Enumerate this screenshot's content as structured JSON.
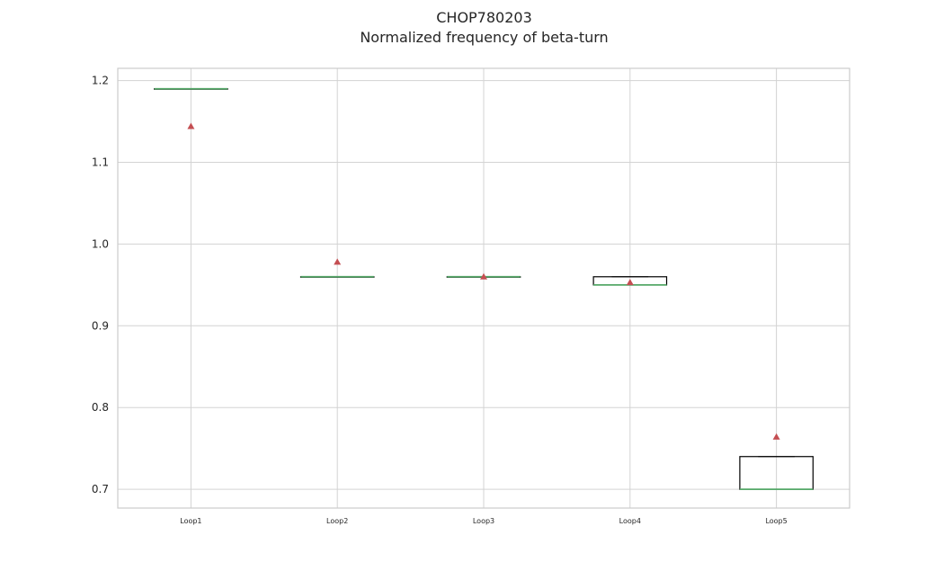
{
  "chart_data": {
    "type": "box",
    "title": "CHOP780203",
    "subtitle": "Normalized frequency of beta-turn",
    "xlabel": "",
    "ylabel": "",
    "ylim": [
      0.677,
      1.215
    ],
    "yticks": [
      "0.7",
      "0.8",
      "0.9",
      "1.0",
      "1.1",
      "1.2"
    ],
    "grid": true,
    "categories": [
      "Loop1",
      "Loop2",
      "Loop3",
      "Loop4",
      "Loop5"
    ],
    "boxes": [
      {
        "q1": 1.19,
        "median": 1.19,
        "q3": 1.19,
        "whisker_low": 1.19,
        "whisker_high": 1.19,
        "mean": 1.144
      },
      {
        "q1": 0.96,
        "median": 0.96,
        "q3": 0.96,
        "whisker_low": 0.96,
        "whisker_high": 0.96,
        "mean": 0.978
      },
      {
        "q1": 0.96,
        "median": 0.96,
        "q3": 0.96,
        "whisker_low": 0.96,
        "whisker_high": 0.96,
        "mean": 0.96
      },
      {
        "q1": 0.95,
        "median": 0.95,
        "q3": 0.96,
        "whisker_low": 0.95,
        "whisker_high": 0.96,
        "mean": 0.953
      },
      {
        "q1": 0.7,
        "median": 0.7,
        "q3": 0.74,
        "whisker_low": 0.7,
        "whisker_high": 0.74,
        "mean": 0.764
      }
    ],
    "colors": {
      "box": "#000000",
      "median": "#55a868",
      "mean": "#c44e52",
      "grid": "#d3d3d3",
      "frame": "#cccccc"
    }
  }
}
